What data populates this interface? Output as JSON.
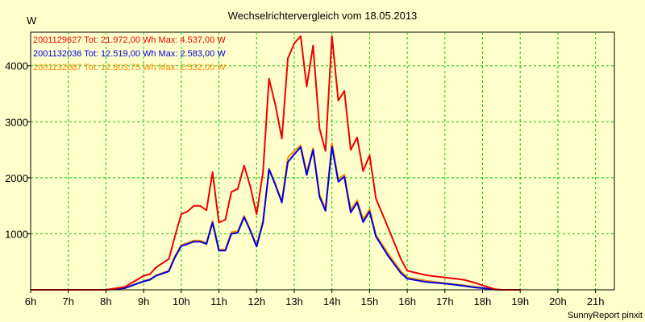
{
  "chart_data": {
    "type": "line",
    "title": "Wechselrichtervergleich vom 18.05.2013",
    "ylabel": "W",
    "xlabel": "",
    "footer": "SunnyReport pinxit",
    "xlim": [
      6,
      21.5
    ],
    "ylim": [
      0,
      4600
    ],
    "grid": true,
    "legend_position": "top-left",
    "x_ticks": [
      6,
      7,
      8,
      9,
      10,
      11,
      12,
      13,
      14,
      15,
      16,
      17,
      18,
      19,
      20,
      21
    ],
    "x_tick_labels": [
      "6h",
      "7h",
      "8h",
      "9h",
      "10h",
      "11h",
      "12h",
      "13h",
      "14h",
      "15h",
      "16h",
      "17h",
      "18h",
      "19h",
      "20h",
      "21h"
    ],
    "y_ticks": [
      1000,
      2000,
      3000,
      4000
    ],
    "y_tick_labels": [
      "1000",
      "2000",
      "3000",
      "4000"
    ],
    "colors": {
      "background": "#ffffcc",
      "grid": "#00cc00"
    },
    "series": [
      {
        "name": "2001129627",
        "legend": "2001129627 Tot: 21.972,00 Wh Max: 4.537,00 W",
        "color": "#ee0000",
        "points": [
          [
            6.0,
            0
          ],
          [
            7.0,
            0
          ],
          [
            8.0,
            0
          ],
          [
            8.5,
            50
          ],
          [
            9.0,
            250
          ],
          [
            9.17,
            280
          ],
          [
            9.33,
            400
          ],
          [
            9.67,
            550
          ],
          [
            9.83,
            950
          ],
          [
            10.0,
            1350
          ],
          [
            10.17,
            1400
          ],
          [
            10.33,
            1500
          ],
          [
            10.5,
            1500
          ],
          [
            10.67,
            1420
          ],
          [
            10.83,
            2100
          ],
          [
            11.0,
            1200
          ],
          [
            11.17,
            1250
          ],
          [
            11.33,
            1750
          ],
          [
            11.5,
            1800
          ],
          [
            11.67,
            2220
          ],
          [
            11.83,
            1850
          ],
          [
            12.0,
            1350
          ],
          [
            12.17,
            2100
          ],
          [
            12.33,
            3770
          ],
          [
            12.5,
            3300
          ],
          [
            12.67,
            2700
          ],
          [
            12.83,
            4130
          ],
          [
            13.0,
            4400
          ],
          [
            13.17,
            4530
          ],
          [
            13.33,
            3630
          ],
          [
            13.5,
            4360
          ],
          [
            13.67,
            2880
          ],
          [
            13.83,
            2480
          ],
          [
            14.0,
            4530
          ],
          [
            14.17,
            3380
          ],
          [
            14.33,
            3550
          ],
          [
            14.5,
            2500
          ],
          [
            14.67,
            2720
          ],
          [
            14.83,
            2120
          ],
          [
            15.0,
            2400
          ],
          [
            15.17,
            1630
          ],
          [
            15.5,
            1100
          ],
          [
            15.83,
            550
          ],
          [
            16.0,
            340
          ],
          [
            16.5,
            260
          ],
          [
            17.0,
            220
          ],
          [
            17.5,
            180
          ],
          [
            17.83,
            120
          ],
          [
            18.0,
            80
          ],
          [
            18.33,
            10
          ],
          [
            18.5,
            0
          ],
          [
            19.0,
            0
          ]
        ]
      },
      {
        "name": "2001132036",
        "legend": "2001132036 Tot: 12.519,00 Wh Max: 2.583,00 W",
        "color": "#0000dd",
        "points": [
          [
            6.0,
            0
          ],
          [
            7.0,
            0
          ],
          [
            8.0,
            0
          ],
          [
            8.5,
            30
          ],
          [
            9.0,
            150
          ],
          [
            9.17,
            180
          ],
          [
            9.33,
            250
          ],
          [
            9.67,
            330
          ],
          [
            9.83,
            580
          ],
          [
            10.0,
            780
          ],
          [
            10.17,
            820
          ],
          [
            10.33,
            860
          ],
          [
            10.5,
            860
          ],
          [
            10.67,
            820
          ],
          [
            10.83,
            1200
          ],
          [
            11.0,
            700
          ],
          [
            11.17,
            700
          ],
          [
            11.33,
            1000
          ],
          [
            11.5,
            1020
          ],
          [
            11.67,
            1300
          ],
          [
            11.83,
            1060
          ],
          [
            12.0,
            770
          ],
          [
            12.17,
            1200
          ],
          [
            12.33,
            2150
          ],
          [
            12.5,
            1870
          ],
          [
            12.67,
            1560
          ],
          [
            12.83,
            2280
          ],
          [
            13.0,
            2420
          ],
          [
            13.17,
            2550
          ],
          [
            13.33,
            2050
          ],
          [
            13.5,
            2500
          ],
          [
            13.67,
            1660
          ],
          [
            13.83,
            1410
          ],
          [
            14.0,
            2560
          ],
          [
            14.17,
            1930
          ],
          [
            14.33,
            2020
          ],
          [
            14.5,
            1380
          ],
          [
            14.67,
            1560
          ],
          [
            14.83,
            1210
          ],
          [
            15.0,
            1400
          ],
          [
            15.17,
            950
          ],
          [
            15.5,
            600
          ],
          [
            15.83,
            300
          ],
          [
            16.0,
            200
          ],
          [
            16.5,
            140
          ],
          [
            17.0,
            110
          ],
          [
            17.5,
            70
          ],
          [
            17.83,
            40
          ],
          [
            18.0,
            30
          ],
          [
            18.33,
            5
          ],
          [
            18.5,
            0
          ],
          [
            19.0,
            0
          ]
        ]
      },
      {
        "name": "2001132087",
        "legend": "2001132087 Tot: 12.803,75 Wh Max: 2.532,00 W",
        "color": "#ff8c00",
        "points": [
          [
            6.0,
            0
          ],
          [
            7.0,
            0
          ],
          [
            8.0,
            0
          ],
          [
            8.5,
            30
          ],
          [
            9.0,
            160
          ],
          [
            9.17,
            190
          ],
          [
            9.33,
            260
          ],
          [
            9.67,
            340
          ],
          [
            9.83,
            600
          ],
          [
            10.0,
            800
          ],
          [
            10.17,
            840
          ],
          [
            10.33,
            880
          ],
          [
            10.5,
            880
          ],
          [
            10.67,
            840
          ],
          [
            10.83,
            1230
          ],
          [
            11.0,
            720
          ],
          [
            11.17,
            720
          ],
          [
            11.33,
            1030
          ],
          [
            11.5,
            1050
          ],
          [
            11.67,
            1320
          ],
          [
            11.83,
            1080
          ],
          [
            12.0,
            790
          ],
          [
            12.17,
            1230
          ],
          [
            12.33,
            2160
          ],
          [
            12.5,
            1890
          ],
          [
            12.67,
            1580
          ],
          [
            12.83,
            2360
          ],
          [
            13.0,
            2480
          ],
          [
            13.17,
            2580
          ],
          [
            13.33,
            2100
          ],
          [
            13.5,
            2530
          ],
          [
            13.67,
            1700
          ],
          [
            13.83,
            1450
          ],
          [
            14.0,
            2620
          ],
          [
            14.17,
            1980
          ],
          [
            14.33,
            2060
          ],
          [
            14.5,
            1430
          ],
          [
            14.67,
            1600
          ],
          [
            14.83,
            1260
          ],
          [
            15.0,
            1440
          ],
          [
            15.17,
            980
          ],
          [
            15.5,
            640
          ],
          [
            15.83,
            330
          ],
          [
            16.0,
            220
          ],
          [
            16.5,
            160
          ],
          [
            17.0,
            120
          ],
          [
            17.5,
            80
          ],
          [
            17.83,
            50
          ],
          [
            18.0,
            35
          ],
          [
            18.33,
            5
          ],
          [
            18.5,
            0
          ],
          [
            19.0,
            0
          ]
        ]
      }
    ]
  }
}
